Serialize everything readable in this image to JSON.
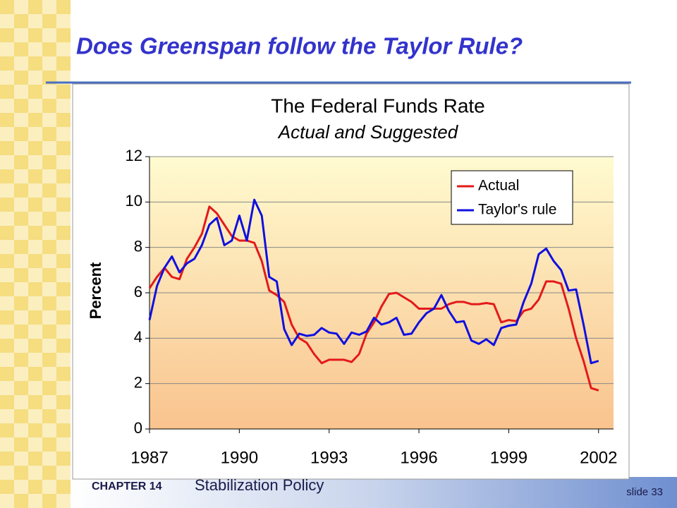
{
  "slide_title": "Does Greenspan follow the Taylor Rule?",
  "footer": {
    "chapter": "CHAPTER 14",
    "topic": "Stabilization Policy",
    "slide": "slide 33"
  },
  "chart_data": {
    "type": "line",
    "title": "The Federal Funds Rate",
    "subtitle": "Actual and Suggested",
    "ylabel": "Percent",
    "x": [
      1987,
      1987.25,
      1987.5,
      1987.75,
      1988,
      1988.25,
      1988.5,
      1988.75,
      1989,
      1989.25,
      1989.5,
      1989.75,
      1990,
      1990.25,
      1990.5,
      1990.75,
      1991,
      1991.25,
      1991.5,
      1991.75,
      1992,
      1992.25,
      1992.5,
      1992.75,
      1993,
      1993.25,
      1993.5,
      1993.75,
      1994,
      1994.25,
      1994.5,
      1994.75,
      1995,
      1995.25,
      1995.5,
      1995.75,
      1996,
      1996.25,
      1996.5,
      1996.75,
      1997,
      1997.25,
      1997.5,
      1997.75,
      1998,
      1998.25,
      1998.5,
      1998.75,
      1999,
      1999.25,
      1999.5,
      1999.75,
      2000,
      2000.25,
      2000.5,
      2000.75,
      2001,
      2001.25,
      2001.5,
      2001.75,
      2002
    ],
    "series": [
      {
        "name": "Actual",
        "color": "#e31a1a",
        "values": [
          6.2,
          6.7,
          7.1,
          6.7,
          6.6,
          7.5,
          8.0,
          8.6,
          9.8,
          9.5,
          9.0,
          8.5,
          8.3,
          8.3,
          8.2,
          7.4,
          6.1,
          5.9,
          5.6,
          4.6,
          4.0,
          3.8,
          3.3,
          2.9,
          3.05,
          3.05,
          3.05,
          2.95,
          3.3,
          4.2,
          4.7,
          5.4,
          5.95,
          6.0,
          5.8,
          5.6,
          5.3,
          5.3,
          5.3,
          5.3,
          5.5,
          5.6,
          5.6,
          5.5,
          5.5,
          5.55,
          5.5,
          4.7,
          4.8,
          4.75,
          5.2,
          5.3,
          5.7,
          6.5,
          6.5,
          6.4,
          5.3,
          4.0,
          3.0,
          1.8,
          1.7
        ]
      },
      {
        "name": "Taylor's rule",
        "color": "#1010e0",
        "values": [
          4.8,
          6.3,
          7.1,
          7.6,
          6.9,
          7.3,
          7.5,
          8.1,
          9.0,
          9.3,
          8.1,
          8.3,
          9.4,
          8.3,
          10.1,
          9.4,
          6.7,
          6.5,
          4.4,
          3.7,
          4.2,
          4.1,
          4.15,
          4.45,
          4.25,
          4.2,
          3.75,
          4.25,
          4.15,
          4.3,
          4.9,
          4.6,
          4.7,
          4.9,
          4.15,
          4.2,
          4.7,
          5.1,
          5.3,
          5.9,
          5.2,
          4.7,
          4.75,
          3.9,
          3.75,
          3.95,
          3.7,
          4.45,
          4.55,
          4.6,
          5.6,
          6.4,
          7.7,
          7.95,
          7.4,
          7.0,
          6.1,
          6.15,
          4.6,
          2.9,
          3.0
        ]
      }
    ],
    "xlim": [
      1987,
      2002.5
    ],
    "xticks": [
      1987,
      1990,
      1993,
      1996,
      1999,
      2002
    ],
    "ylim": [
      0,
      12
    ],
    "yticks": [
      0,
      2,
      4,
      6,
      8,
      10,
      12
    ],
    "grid": true,
    "legend": "upper right"
  }
}
